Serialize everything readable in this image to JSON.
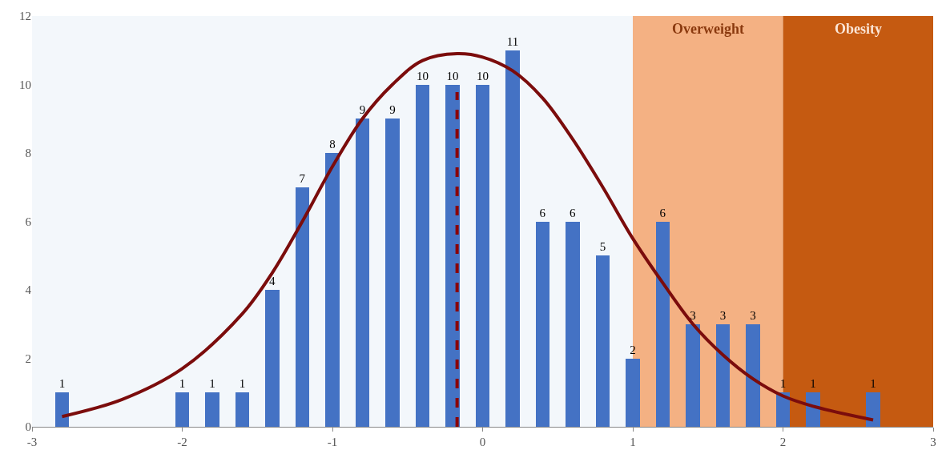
{
  "chart_data": {
    "type": "bar",
    "xlim": [
      -3,
      3
    ],
    "xticks": [
      -3,
      -2,
      -1,
      0,
      1,
      2,
      3
    ],
    "ylim": [
      0,
      12
    ],
    "yticks": [
      0,
      2,
      4,
      6,
      8,
      10,
      12
    ],
    "grid": false,
    "series": [
      {
        "color": "#4472c4",
        "data_labels": true,
        "x": [
          -2.8,
          -2.0,
          -1.8,
          -1.6,
          -1.4,
          -1.2,
          -1.0,
          -0.8,
          -0.6,
          -0.4,
          -0.2,
          0.0,
          0.2,
          0.4,
          0.6,
          0.8,
          1.0,
          1.2,
          1.4,
          1.6,
          1.8,
          2.0,
          2.2,
          2.6
        ],
        "values": [
          1,
          1,
          1,
          1,
          4,
          7,
          8,
          9,
          9,
          10,
          10,
          10,
          11,
          6,
          6,
          5,
          2,
          6,
          3,
          3,
          3,
          1,
          1,
          1
        ]
      },
      {
        "type": "line",
        "color": "#7b0c0c",
        "line_style": "solid",
        "x": [
          -2.8,
          -2.4,
          -2.0,
          -1.6,
          -1.4,
          -1.2,
          -1.0,
          -0.8,
          -0.6,
          -0.4,
          -0.17,
          0.0,
          0.2,
          0.4,
          0.6,
          0.8,
          1.0,
          1.2,
          1.4,
          1.6,
          1.8,
          2.0,
          2.2,
          2.6
        ],
        "values": [
          0.3,
          0.8,
          1.7,
          3.3,
          4.5,
          6.0,
          7.6,
          9.0,
          10.0,
          10.7,
          10.9,
          10.8,
          10.4,
          9.6,
          8.4,
          7.0,
          5.5,
          4.2,
          3.0,
          2.1,
          1.4,
          0.9,
          0.6,
          0.2
        ]
      }
    ],
    "ref_lines": [
      {
        "axis": "x",
        "value": -0.17,
        "color": "#8b0000",
        "line_style": "dashed"
      }
    ],
    "bands": [
      {
        "axis": "x",
        "from": 1.0,
        "to": 2.0,
        "label": "Overweight",
        "color": "#f4b183"
      },
      {
        "axis": "x",
        "from": 2.0,
        "to": 3.0,
        "label": "Obesity",
        "color": "#c55a11"
      }
    ]
  }
}
